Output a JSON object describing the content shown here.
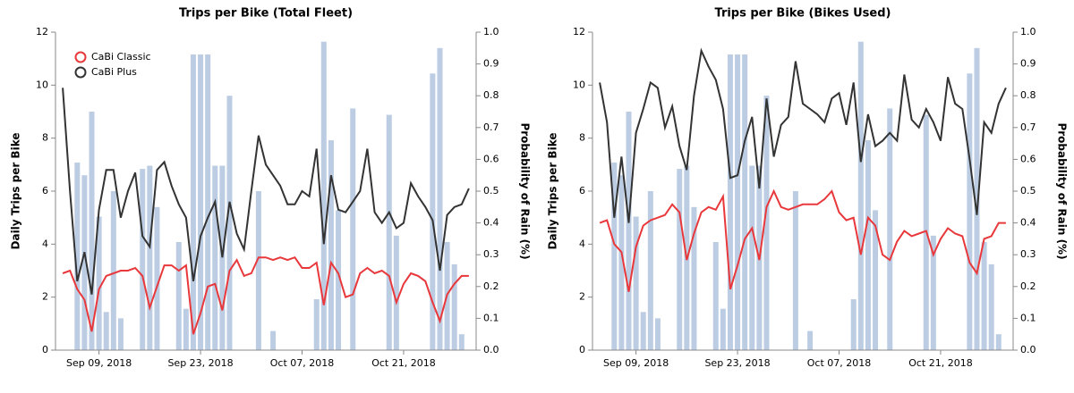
{
  "chart_data": [
    {
      "type": "combo",
      "title": "Trips per Bike (Total Fleet)",
      "y_label": "Daily Trips per Bike",
      "y2_label": "Probability of Rain (%)",
      "legend": "top-left",
      "x": [
        "2018-09-04",
        "2018-09-05",
        "2018-09-06",
        "2018-09-07",
        "2018-09-08",
        "2018-09-09",
        "2018-09-10",
        "2018-09-11",
        "2018-09-12",
        "2018-09-13",
        "2018-09-14",
        "2018-09-15",
        "2018-09-16",
        "2018-09-17",
        "2018-09-18",
        "2018-09-19",
        "2018-09-20",
        "2018-09-21",
        "2018-09-22",
        "2018-09-23",
        "2018-09-24",
        "2018-09-25",
        "2018-09-26",
        "2018-09-27",
        "2018-09-28",
        "2018-09-29",
        "2018-09-30",
        "2018-10-01",
        "2018-10-02",
        "2018-10-03",
        "2018-10-04",
        "2018-10-05",
        "2018-10-06",
        "2018-10-07",
        "2018-10-08",
        "2018-10-09",
        "2018-10-10",
        "2018-10-11",
        "2018-10-12",
        "2018-10-13",
        "2018-10-14",
        "2018-10-15",
        "2018-10-16",
        "2018-10-17",
        "2018-10-18",
        "2018-10-19",
        "2018-10-20",
        "2018-10-21",
        "2018-10-22",
        "2018-10-23",
        "2018-10-24",
        "2018-10-25",
        "2018-10-26",
        "2018-10-27",
        "2018-10-28",
        "2018-10-29",
        "2018-10-30"
      ],
      "xlim": [
        "2018-09-03",
        "2018-10-31"
      ],
      "xticks": [
        {
          "value": "2018-09-09",
          "label": "Sep 09, 2018"
        },
        {
          "value": "2018-09-23",
          "label": "Sep 23, 2018"
        },
        {
          "value": "2018-10-07",
          "label": "Oct 07, 2018"
        },
        {
          "value": "2018-10-21",
          "label": "Oct 21, 2018"
        }
      ],
      "ylim": [
        0,
        12
      ],
      "yticks": [
        0,
        2,
        4,
        6,
        8,
        10,
        12
      ],
      "y2lim": [
        0,
        1
      ],
      "y2ticks": [
        {
          "value": 0,
          "label": "0.0"
        },
        0.1,
        0.2,
        0.3,
        0.4,
        0.5,
        0.6,
        0.7,
        0.8,
        0.9,
        {
          "value": 1,
          "label": "1.0"
        }
      ],
      "series": [
        {
          "axis": "y2",
          "color": "#b0c4de",
          "values": [
            null,
            null,
            0.59,
            0.55,
            0.75,
            0.42,
            0.12,
            0.5,
            0.1,
            null,
            null,
            0.57,
            0.58,
            0.45,
            null,
            null,
            0.34,
            0.13,
            0.93,
            0.93,
            0.93,
            0.58,
            0.58,
            0.8,
            null,
            null,
            null,
            0.5,
            null,
            0.06,
            null,
            null,
            null,
            null,
            null,
            0.16,
            0.97,
            0.66,
            0.44,
            null,
            0.76,
            null,
            null,
            null,
            null,
            0.74,
            0.36,
            null,
            null,
            null,
            null,
            0.87,
            0.95,
            0.34,
            0.27,
            0.05,
            null
          ]
        },
        {
          "name": "CaBi Classic",
          "color": "#e8383b",
          "values": [
            2.9,
            3.0,
            2.3,
            1.9,
            0.7,
            2.3,
            2.8,
            2.9,
            3.0,
            3.0,
            3.1,
            2.8,
            1.6,
            2.4,
            3.2,
            3.2,
            3.0,
            3.2,
            0.6,
            1.4,
            2.4,
            2.5,
            1.5,
            3.0,
            3.4,
            2.8,
            2.9,
            3.5,
            3.5,
            3.4,
            3.5,
            3.4,
            3.5,
            3.1,
            3.1,
            3.3,
            1.7,
            3.3,
            2.9,
            2.0,
            2.1,
            2.9,
            3.1,
            2.9,
            3.0,
            2.8,
            1.8,
            2.5,
            2.9,
            2.8,
            2.6,
            1.8,
            1.1,
            2.1,
            2.5,
            2.8,
            2.8
          ]
        },
        {
          "name": "CaBi Plus",
          "color": "#333333",
          "values": [
            9.9,
            6.0,
            2.6,
            3.7,
            2.1,
            5.3,
            6.8,
            6.8,
            5.0,
            6.0,
            6.7,
            4.3,
            3.9,
            6.8,
            7.1,
            6.2,
            5.5,
            5.0,
            2.6,
            4.3,
            5.0,
            5.6,
            3.5,
            5.6,
            4.4,
            3.8,
            6.0,
            8.1,
            7.0,
            6.6,
            6.2,
            5.5,
            5.5,
            6.0,
            5.8,
            7.6,
            4.0,
            6.6,
            5.3,
            5.2,
            5.6,
            6.0,
            7.6,
            5.2,
            4.8,
            5.2,
            4.6,
            4.8,
            6.3,
            5.8,
            5.4,
            4.9,
            3.0,
            5.1,
            5.4,
            5.5,
            6.1
          ]
        }
      ]
    },
    {
      "type": "combo",
      "title": "Trips per Bike (Bikes Used)",
      "y_label": "Daily Trips per Bike",
      "y2_label": "Probability of Rain (%)",
      "x": [
        "2018-09-04",
        "2018-09-05",
        "2018-09-06",
        "2018-09-07",
        "2018-09-08",
        "2018-09-09",
        "2018-09-10",
        "2018-09-11",
        "2018-09-12",
        "2018-09-13",
        "2018-09-14",
        "2018-09-15",
        "2018-09-16",
        "2018-09-17",
        "2018-09-18",
        "2018-09-19",
        "2018-09-20",
        "2018-09-21",
        "2018-09-22",
        "2018-09-23",
        "2018-09-24",
        "2018-09-25",
        "2018-09-26",
        "2018-09-27",
        "2018-09-28",
        "2018-09-29",
        "2018-09-30",
        "2018-10-01",
        "2018-10-02",
        "2018-10-03",
        "2018-10-04",
        "2018-10-05",
        "2018-10-06",
        "2018-10-07",
        "2018-10-08",
        "2018-10-09",
        "2018-10-10",
        "2018-10-11",
        "2018-10-12",
        "2018-10-13",
        "2018-10-14",
        "2018-10-15",
        "2018-10-16",
        "2018-10-17",
        "2018-10-18",
        "2018-10-19",
        "2018-10-20",
        "2018-10-21",
        "2018-10-22",
        "2018-10-23",
        "2018-10-24",
        "2018-10-25",
        "2018-10-26",
        "2018-10-27",
        "2018-10-28",
        "2018-10-29",
        "2018-10-30"
      ],
      "xlim": [
        "2018-09-03",
        "2018-10-31"
      ],
      "xticks": [
        {
          "value": "2018-09-09",
          "label": "Sep 09, 2018"
        },
        {
          "value": "2018-09-23",
          "label": "Sep 23, 2018"
        },
        {
          "value": "2018-10-07",
          "label": "Oct 07, 2018"
        },
        {
          "value": "2018-10-21",
          "label": "Oct 21, 2018"
        }
      ],
      "ylim": [
        0,
        12
      ],
      "yticks": [
        0,
        2,
        4,
        6,
        8,
        10,
        12
      ],
      "y2lim": [
        0,
        1
      ],
      "y2ticks": [
        {
          "value": 0,
          "label": "0.0"
        },
        0.1,
        0.2,
        0.3,
        0.4,
        0.5,
        0.6,
        0.7,
        0.8,
        0.9,
        {
          "value": 1,
          "label": "1.0"
        }
      ],
      "series": [
        {
          "axis": "y2",
          "color": "#b0c4de",
          "values": [
            null,
            null,
            0.59,
            0.55,
            0.75,
            0.42,
            0.12,
            0.5,
            0.1,
            null,
            null,
            0.57,
            0.58,
            0.45,
            null,
            null,
            0.34,
            0.13,
            0.93,
            0.93,
            0.93,
            0.58,
            0.58,
            0.8,
            null,
            null,
            null,
            0.5,
            null,
            0.06,
            null,
            null,
            null,
            null,
            null,
            0.16,
            0.97,
            0.66,
            0.44,
            null,
            0.76,
            null,
            null,
            null,
            null,
            0.74,
            0.36,
            null,
            null,
            null,
            null,
            0.87,
            0.95,
            0.34,
            0.27,
            0.05,
            null
          ]
        },
        {
          "color": "#e8383b",
          "values": [
            4.8,
            4.9,
            4.0,
            3.7,
            2.2,
            3.9,
            4.7,
            4.9,
            5.0,
            5.1,
            5.5,
            5.2,
            3.4,
            4.4,
            5.2,
            5.4,
            5.3,
            5.8,
            2.3,
            3.2,
            4.2,
            4.6,
            3.4,
            5.4,
            6.0,
            5.4,
            5.3,
            5.4,
            5.5,
            5.5,
            5.5,
            5.7,
            6.0,
            5.2,
            4.9,
            5.0,
            3.6,
            5.0,
            4.7,
            3.6,
            3.4,
            4.1,
            4.5,
            4.3,
            4.4,
            4.5,
            3.6,
            4.2,
            4.6,
            4.4,
            4.3,
            3.3,
            2.9,
            4.2,
            4.3,
            4.8,
            4.8
          ]
        },
        {
          "color": "#333333",
          "values": [
            10.1,
            8.6,
            5.0,
            7.3,
            4.8,
            8.2,
            9.1,
            10.1,
            9.9,
            8.4,
            9.2,
            7.7,
            6.8,
            9.6,
            11.3,
            10.7,
            10.2,
            9.1,
            6.5,
            6.6,
            7.9,
            8.8,
            6.1,
            9.5,
            7.3,
            8.5,
            8.8,
            10.9,
            9.3,
            9.1,
            8.9,
            8.6,
            9.5,
            9.7,
            8.5,
            10.1,
            7.1,
            8.9,
            7.7,
            7.9,
            8.2,
            7.9,
            10.4,
            8.7,
            8.4,
            9.1,
            8.6,
            7.9,
            10.3,
            9.3,
            9.1,
            7.2,
            5.1,
            8.6,
            8.2,
            9.3,
            9.9
          ]
        }
      ]
    }
  ]
}
